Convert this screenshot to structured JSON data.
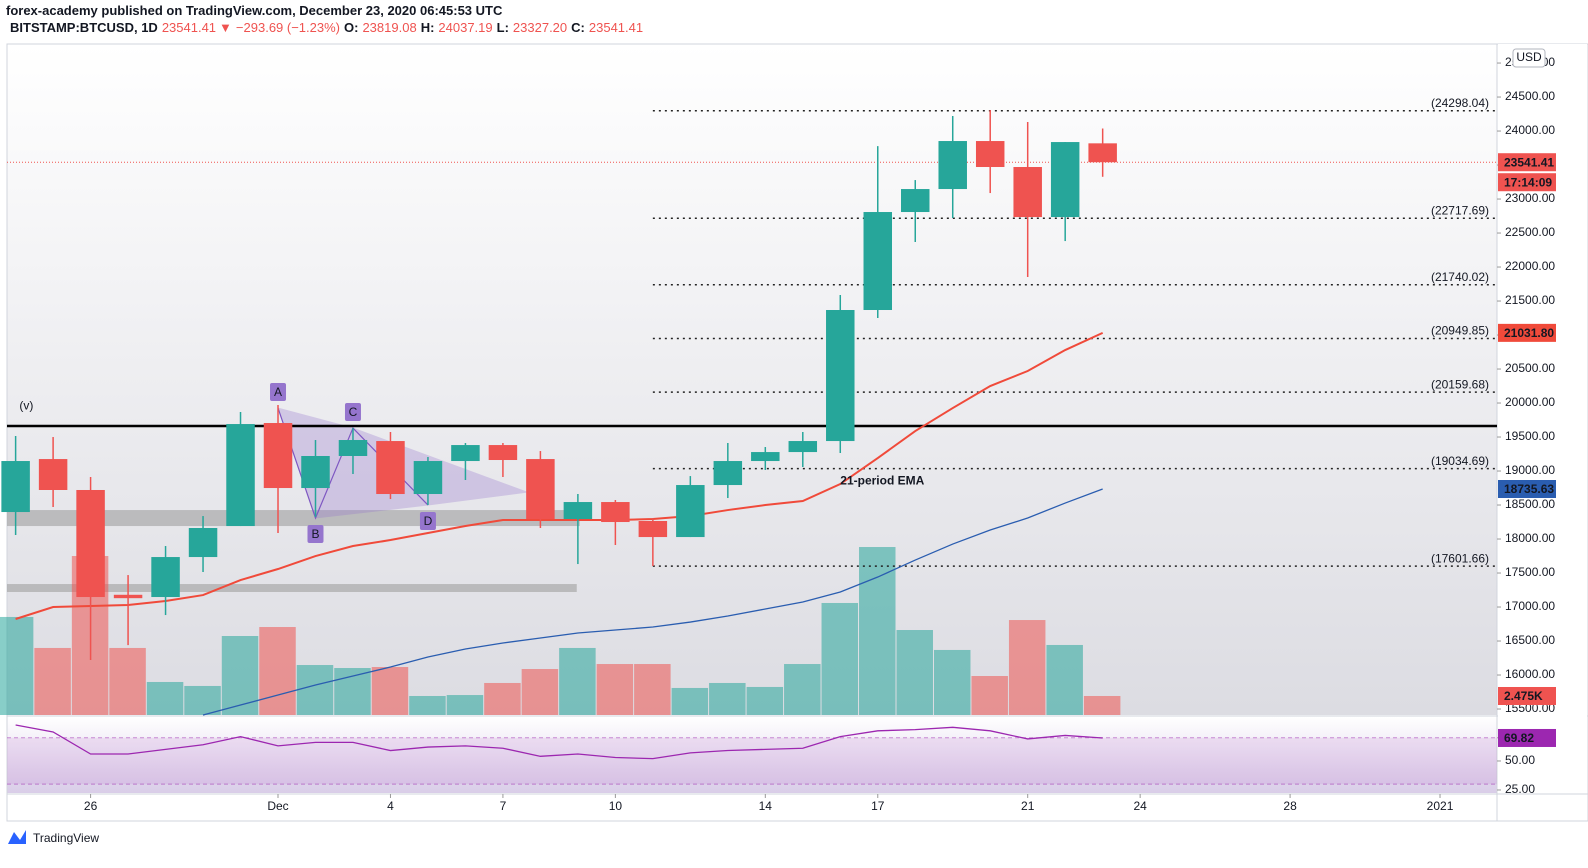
{
  "header": {
    "author_line": "forex-academy published on TradingView.com, December 23, 2020 06:45:53 UTC",
    "symbol": "BITSTAMP:BTCUSD, 1D",
    "last": "23541.41",
    "change": "−293.69 (−1.23%)",
    "ohlc": [
      {
        "label": "O:",
        "value": "23819.08"
      },
      {
        "label": "H:",
        "value": "24037.19"
      },
      {
        "label": "L:",
        "value": "23327.20"
      },
      {
        "label": "C:",
        "value": "23541.41"
      }
    ]
  },
  "footer": {
    "brand": "TradingView"
  },
  "chart_data": {
    "type": "candlestick",
    "currency": "USD",
    "countdown": "17:14:09",
    "x": [
      24,
      25,
      26,
      27,
      28,
      29,
      30,
      31,
      32,
      33,
      34,
      35,
      36,
      37,
      38,
      39,
      40,
      41,
      42,
      43,
      44,
      45,
      46,
      47,
      48,
      49,
      50,
      51,
      52,
      53
    ],
    "open": [
      18397,
      19176,
      18721,
      17180,
      17147,
      17735,
      18191,
      19706,
      18750,
      19221,
      19441,
      18662,
      19147,
      19382,
      19176,
      18294,
      18544,
      18265,
      18029,
      18794,
      19147,
      19279,
      19441,
      21368,
      22809,
      23147,
      23853,
      23471,
      22735,
      23819.08
    ],
    "high": [
      19515,
      19500,
      18912,
      17470,
      17897,
      18338,
      19868,
      19971,
      19456,
      19632,
      19574,
      19206,
      19412,
      19412,
      19294,
      18662,
      18574,
      18309,
      18926,
      19412,
      19353,
      19574,
      21588,
      23779,
      23279,
      24221,
      24309,
      24132,
      23838,
      24037.19
    ],
    "low": [
      18059,
      18471,
      16221,
      16440,
      16882,
      17515,
      18191,
      18088,
      18324,
      18956,
      18588,
      18500,
      18868,
      18912,
      18162,
      17632,
      17912,
      17603,
      18029,
      18603,
      19015,
      19059,
      19265,
      21250,
      22368,
      22721,
      23088,
      21853,
      22382,
      23327.2
    ],
    "close": [
      19147,
      18721,
      17147,
      17130,
      17735,
      18162,
      19691,
      18750,
      19221,
      19456,
      18662,
      19147,
      19382,
      19162,
      18294,
      18544,
      18250,
      18029,
      18794,
      19147,
      19279,
      19441,
      21368,
      22809,
      23147,
      23853,
      23471,
      22735,
      23838,
      23541.41
    ],
    "up_color": "#26a69a",
    "down_color": "#ef5350",
    "xlim": [
      23.77,
      63.52
    ],
    "xticks": [
      26,
      {
        "value": 31,
        "label": "Dec"
      },
      {
        "value": 34,
        "label": "4"
      },
      {
        "value": 37,
        "label": "7"
      },
      {
        "value": 40,
        "label": "10"
      },
      {
        "value": 44,
        "label": "14"
      },
      {
        "value": 47,
        "label": "17"
      },
      {
        "value": 51,
        "label": "21"
      },
      {
        "value": 54,
        "label": "24"
      },
      {
        "value": 58,
        "label": "28"
      },
      {
        "value": 62,
        "label": "2021"
      }
    ],
    "ylim": [
      15412,
      25280
    ],
    "yticks": [
      {
        "value": 15500,
        "label": "15500.00"
      },
      {
        "value": 16000,
        "label": "16000.00"
      },
      {
        "value": 16500,
        "label": "16500.00"
      },
      {
        "value": 17000,
        "label": "17000.00"
      },
      {
        "value": 17500,
        "label": "17500.00"
      },
      {
        "value": 18000,
        "label": "18000.00"
      },
      {
        "value": 18500,
        "label": "18500.00"
      },
      {
        "value": 19000,
        "label": "19000.00"
      },
      {
        "value": 19500,
        "label": "19500.00"
      },
      {
        "value": 20000,
        "label": "20000.00"
      },
      {
        "value": 20500,
        "label": "20500.00"
      },
      {
        "value": 21000,
        "label": "21000.00"
      },
      {
        "value": 21500,
        "label": "21500.00"
      },
      {
        "value": 22000,
        "label": "22000.00"
      },
      {
        "value": 22500,
        "label": "22500.00"
      },
      {
        "value": 23000,
        "label": "23000.00"
      },
      {
        "value": 23500,
        "label": "23500.00"
      },
      {
        "value": 24000,
        "label": "24000.00"
      },
      {
        "value": 24500,
        "label": "24500.00"
      },
      {
        "value": 25000,
        "label": "25000.00"
      }
    ],
    "volume": {
      "values": [
        12770,
        8730,
        20710,
        8730,
        4300,
        3780,
        10290,
        11460,
        6510,
        6120,
        6250,
        2475,
        2600,
        4170,
        5990,
        8730,
        6640,
        6640,
        3520,
        4170,
        3650,
        6640,
        14590,
        21880,
        11070,
        8470,
        5080,
        12370,
        9120,
        2475
      ],
      "ylim": [
        0,
        87400
      ],
      "last_value_label": "2.475K"
    },
    "lines": [
      {
        "color": "#f04a3a",
        "last_value_label": "21031.80",
        "values": [
          16824,
          17000,
          17015,
          17029,
          17088,
          17176,
          17397,
          17559,
          17750,
          17897,
          17985,
          18088,
          18191,
          18279,
          18279,
          18279,
          18279,
          18294,
          18338,
          18426,
          18500,
          18559,
          18809,
          19191,
          19588,
          19926,
          20250,
          20471,
          20779,
          21031.8
        ]
      },
      {
        "color": "#2a5db0",
        "last_value_label": "18735.63",
        "values": [
          null,
          null,
          null,
          null,
          null,
          15412,
          15559,
          15706,
          15853,
          15985,
          16118,
          16265,
          16382,
          16471,
          16544,
          16618,
          16662,
          16706,
          16779,
          16868,
          16971,
          17074,
          17221,
          17441,
          17691,
          17926,
          18132,
          18309,
          18529,
          18735.63
        ]
      }
    ],
    "level": 19662,
    "zones": [
      {
        "x": [
          23.77,
          39.05
        ],
        "y": [
          18191,
          18426
        ]
      },
      {
        "x": [
          23.77,
          38.97
        ],
        "y": [
          17221,
          17338
        ]
      }
    ],
    "fib": {
      "x_start": 41,
      "levels": [
        {
          "value": 24298.04,
          "label": "(24298.04)"
        },
        {
          "value": 22717.69,
          "label": "(22717.69)"
        },
        {
          "value": 21740.02,
          "label": "(21740.02)"
        },
        {
          "value": 20949.85,
          "label": "(20949.85)"
        },
        {
          "value": 20159.68,
          "label": "(20159.68)"
        },
        {
          "value": 19034.69,
          "label": "(19034.69)"
        },
        {
          "value": 17601.66,
          "label": "(17601.66)"
        }
      ]
    },
    "pattern": {
      "points": [
        {
          "label": "A",
          "x": 31,
          "y": 19926
        },
        {
          "label": "B",
          "x": 32,
          "y": 18309
        },
        {
          "label": "C",
          "x": 33,
          "y": 19632
        },
        {
          "label": "D",
          "x": 35,
          "y": 18500
        }
      ],
      "end": [
        37.64,
        18690
      ]
    },
    "annotations": [
      {
        "text": "21-period EMA",
        "x": 46,
        "y": 18850,
        "color": "#e8473b"
      },
      {
        "text": "(v)",
        "x": 24.1,
        "y": 19950,
        "color": "#2a5db0"
      }
    ],
    "rsi": {
      "values": [
        81,
        75,
        56,
        56,
        60,
        64,
        71,
        63,
        66,
        66,
        59,
        62,
        63,
        61,
        54,
        56,
        53,
        52,
        57,
        59,
        60,
        61,
        71,
        76,
        77,
        79,
        76,
        69,
        72,
        69.82
      ],
      "ylim": [
        22.4,
        87.9
      ],
      "band": [
        30,
        70
      ],
      "color": "#9c27b0",
      "yticks": [
        {
          "value": 70,
          "label": "70.00"
        },
        {
          "value": 50,
          "label": "50.00"
        },
        {
          "value": 25,
          "label": "25.00"
        }
      ]
    }
  }
}
